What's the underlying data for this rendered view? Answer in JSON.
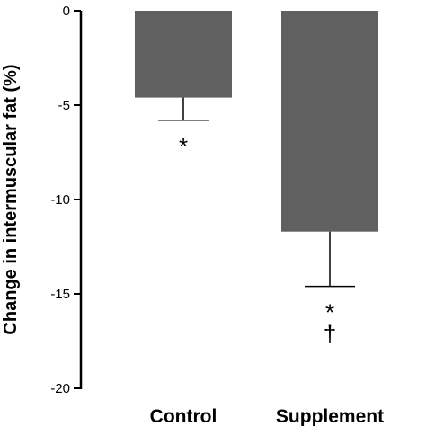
{
  "chart_data": {
    "type": "bar",
    "title": "",
    "xlabel": "",
    "ylabel": "Change in intermuscular fat (%)",
    "categories": [
      "Control",
      "Supplement"
    ],
    "values": [
      -4.6,
      -11.7
    ],
    "error_bars": [
      1.2,
      2.9
    ],
    "annotations": [
      [
        "*"
      ],
      [
        "*",
        "†"
      ]
    ],
    "ylim": [
      -20,
      0
    ],
    "yticks": [
      0,
      -5,
      -10,
      -15,
      -20
    ],
    "ytick_labels": [
      "0",
      "-5",
      "-10",
      "-15",
      "-20"
    ],
    "bar_color": "#606060",
    "grid": false,
    "legend": "none"
  }
}
